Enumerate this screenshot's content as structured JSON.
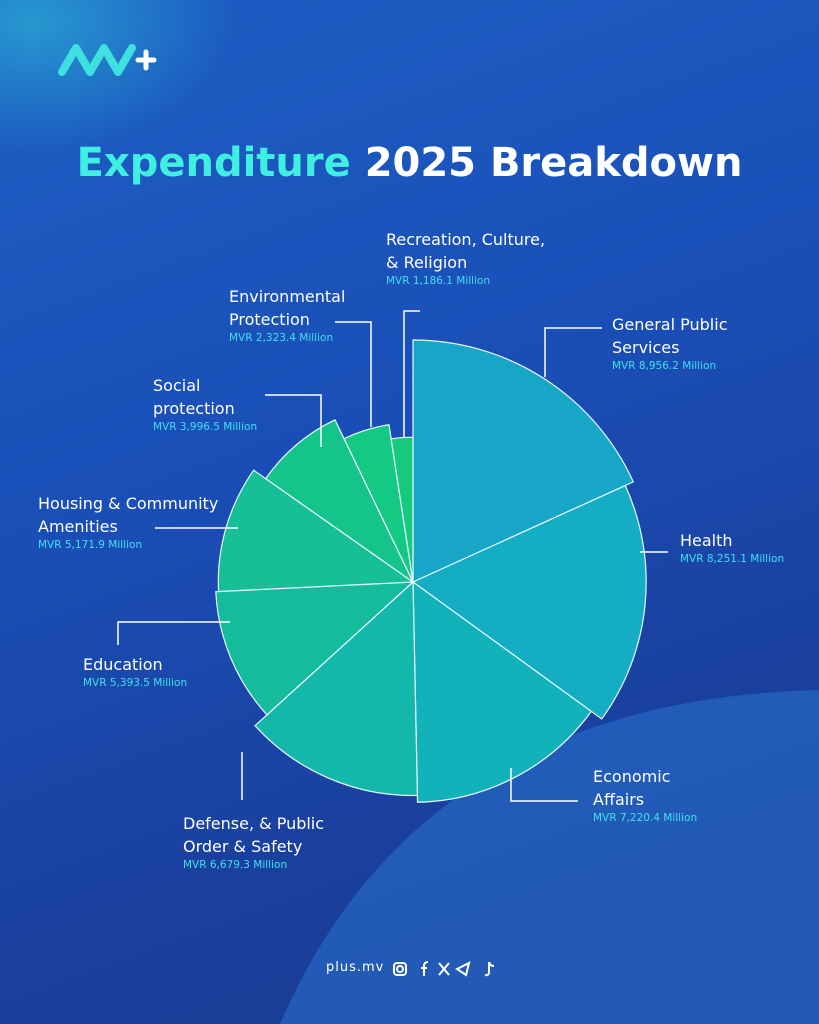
{
  "chart_data": {
    "type": "pie",
    "title_highlight": "Expenditure",
    "title": "2025 Breakdown",
    "categories": [
      "General Public Services",
      "Health",
      "Economic Affairs",
      "Defense, & Public Order & Safety",
      "Education",
      "Housing & Community Amenities",
      "Social protection",
      "Environmental Protection",
      "Recreation, Culture, & Religion"
    ],
    "values": [
      8956.2,
      8251.1,
      7220.4,
      6679.3,
      5393.5,
      5171.9,
      3996.5,
      2323.4,
      1186.1
    ],
    "value_labels": [
      "MVR 8,956.2 Million",
      "MVR 8,251.1 Million",
      "MVR 7,220.4 Million",
      "MVR 6,679.3 Million",
      "MVR 5,393.5 Million",
      "MVR 5,171.9 Million",
      "MVR 3,996.5 Million",
      "MVR 2,323.4 Million",
      "MVR 1,186.1 Million"
    ],
    "colors": [
      "#18a6c8",
      "#14adc4",
      "#12b2bb",
      "#13b8aa",
      "#15bc9c",
      "#16bf95",
      "#15c48a",
      "#14c983",
      "#14cb7d"
    ]
  },
  "footer": "plus.mv"
}
